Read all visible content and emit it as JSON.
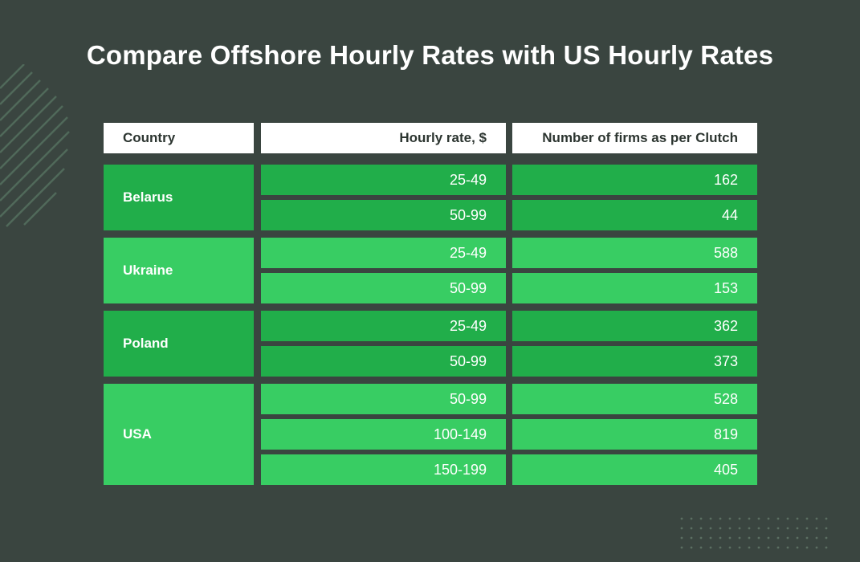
{
  "title": "Compare Offshore Hourly Rates with US Hourly Rates",
  "colors": {
    "background": "#3a4540",
    "header_bg": "#ffffff",
    "group_dark": "#21ae4a",
    "group_light": "#38cd63"
  },
  "chart_data": {
    "type": "table",
    "columns": [
      "Country",
      "Hourly rate, $",
      "Number of firms as per Clutch"
    ],
    "groups": [
      {
        "country": "Belarus",
        "rows": [
          {
            "rate": "25-49",
            "firms": 162
          },
          {
            "rate": "50-99",
            "firms": 44
          }
        ]
      },
      {
        "country": "Ukraine",
        "rows": [
          {
            "rate": "25-49",
            "firms": 588
          },
          {
            "rate": "50-99",
            "firms": 153
          }
        ]
      },
      {
        "country": "Poland",
        "rows": [
          {
            "rate": "25-49",
            "firms": 362
          },
          {
            "rate": "50-99",
            "firms": 373
          }
        ]
      },
      {
        "country": "USA",
        "rows": [
          {
            "rate": "50-99",
            "firms": 528
          },
          {
            "rate": "100-149",
            "firms": 819
          },
          {
            "rate": "150-199",
            "firms": 405
          }
        ]
      }
    ]
  }
}
